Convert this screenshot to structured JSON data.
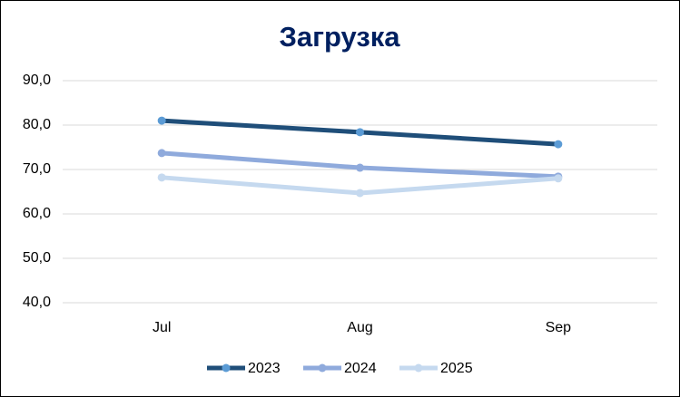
{
  "chart_data": {
    "type": "line",
    "title": "Загрузка",
    "categories": [
      "Jul",
      "Aug",
      "Sep"
    ],
    "series": [
      {
        "name": "2023",
        "color": "#1f4e79",
        "values": [
          81.0,
          78.4,
          75.7
        ]
      },
      {
        "name": "2024",
        "color": "#8faadc",
        "values": [
          73.7,
          70.4,
          68.4
        ]
      },
      {
        "name": "2025",
        "color": "#c5d9ef",
        "values": [
          68.2,
          64.7,
          68.0
        ]
      }
    ],
    "ylim": [
      40,
      90
    ],
    "yticks": [
      {
        "value": 40,
        "label": "40,0"
      },
      {
        "value": 50,
        "label": "50,0"
      },
      {
        "value": 60,
        "label": "60,0"
      },
      {
        "value": 70,
        "label": "70,0"
      },
      {
        "value": 80,
        "label": "80,0"
      },
      {
        "value": 90,
        "label": "90,0"
      }
    ],
    "grid": true,
    "legend": "bottom"
  }
}
